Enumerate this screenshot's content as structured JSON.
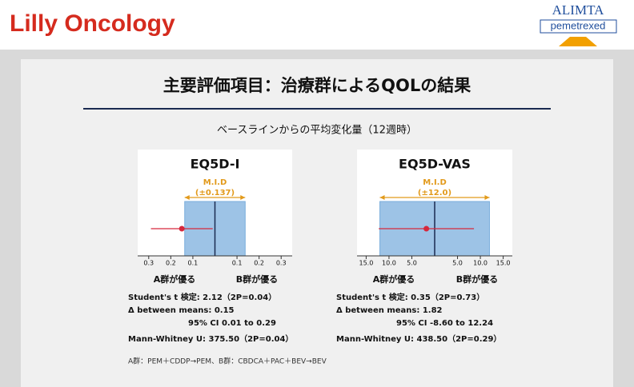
{
  "header": {
    "brand": "Lilly Oncology",
    "logo": "ALIMTA",
    "logo_sub": "pemetrexed"
  },
  "title": "主要評価項目：治療群によるQOLの結果",
  "subtitle": "ベースラインからの平均変化量（12週時）",
  "footnote": "A群：PEM＋CDDP→PEM、B群：CBDCA＋PAC＋BEV→BEV",
  "chart_data": [
    {
      "type": "forest",
      "title": "EQ5D-I",
      "mid_label": "M.I.D",
      "mid_value_label": "(±0.137)",
      "mid": 0.137,
      "point": -0.15,
      "ci": [
        -0.29,
        -0.01
      ],
      "color": "#d6283c",
      "band_color": "#9dc3e6",
      "xlim": [
        -0.35,
        0.35
      ],
      "xticks": [
        {
          "value": -0.3,
          "label": "0.3"
        },
        {
          "value": -0.2,
          "label": "0.2"
        },
        {
          "value": -0.1,
          "label": "0.1"
        },
        0.1,
        0.2,
        0.3
      ],
      "left_label": "A群が優る",
      "right_label": "B群が優る",
      "notes": [
        "Student's t 検定: 2.12（2P=0.04）",
        "Δ between means: 0.15",
        "95% CI 0.01 to 0.29",
        "Mann-Whitney U: 375.50（2P=0.04）"
      ]
    },
    {
      "type": "forest",
      "title": "EQ5D-VAS",
      "mid_label": "M.I.D",
      "mid_value_label": "(±12.0)",
      "mid": 12.0,
      "point": -1.82,
      "ci": [
        -12.24,
        8.6
      ],
      "color": "#d6283c",
      "band_color": "#9dc3e6",
      "xlim": [
        -17,
        17
      ],
      "xticks": [
        {
          "value": -15,
          "label": "15.0"
        },
        {
          "value": -10,
          "label": "10.0"
        },
        {
          "value": -5,
          "label": "5.0"
        },
        {
          "value": 5,
          "label": "5.0"
        },
        {
          "value": 10,
          "label": "10.0"
        },
        {
          "value": 15,
          "label": "15.0"
        }
      ],
      "left_label": "A群が優る",
      "right_label": "B群が優る",
      "notes": [
        "Student's t 検定: 0.35（2P=0.73）",
        "Δ between means: 1.82",
        "95% CI -8.60 to 12.24",
        "Mann-Whitney U: 438.50（2P=0.29）"
      ]
    }
  ]
}
